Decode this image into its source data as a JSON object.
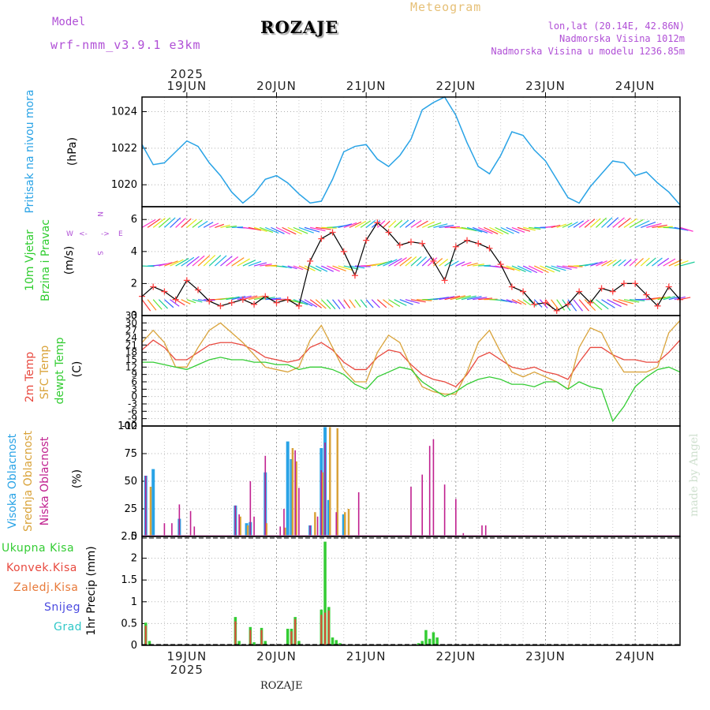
{
  "header": {
    "model_label": "Model",
    "model_name": "wrf-nmm_v3.9.1  e3km",
    "station": "ROZAJE",
    "meteogram": "Meteogram",
    "lonlat": "lon,lat (20.14E, 42.86N)",
    "altitude": "Nadmorska Visina 1012m",
    "model_altitude": "Nadmorska Visina u modelu 1236.85m",
    "footer_station": "ROZAJE",
    "watermark": "made by Angel"
  },
  "colors": {
    "pressure": "#29a3e6",
    "wind_label": "#2ecc2e",
    "temp2m": "#e8493f",
    "sfc": "#d9a33a",
    "dewpt": "#33cc33",
    "high_cloud": "#29a3e6",
    "mid_cloud": "#d9a33a",
    "low_cloud": "#c0208f",
    "precip_total": "#33cc33",
    "precip_conv": "#e8493f",
    "precip_frozen": "#e87a3a",
    "precip_snow": "#4a4ae0",
    "precip_hail": "#30c8c8",
    "model_purple": "#b04fd6"
  },
  "time_axis": {
    "year": "2025",
    "days": [
      "19JUN",
      "20JUN",
      "21JUN",
      "22JUN",
      "23JUN",
      "24JUN"
    ],
    "x_range_hours": [
      -12,
      132
    ]
  },
  "panels": {
    "pressure": {
      "label": "Pritisak na nivou mora",
      "unit": "(hPa)"
    },
    "wind": {
      "label1": "10m Vjetar",
      "label2": "Brzina i Pravac",
      "unit": "(m/s)",
      "compass": {
        "n": "N",
        "s": "S",
        "w": "W",
        "e": "E",
        "arrow_left": "<-",
        "arrow_right": "->"
      }
    },
    "temp": {
      "label1": "2m Temp",
      "label2": "SFC Temp",
      "label3": "dewpt Temp",
      "unit": "(C)"
    },
    "cloud": {
      "label1": "Visoka Oblacnost",
      "label2": "Srednja Oblacnost",
      "label3": "Niska Oblacnost",
      "unit": "(%)"
    },
    "precip": {
      "legend": [
        "Ukupna Kisa",
        "Konvek.Kisa",
        "Zaledj.Kisa",
        "Snijeg",
        "Grad"
      ],
      "unit": "1hr Precip (mm)"
    }
  },
  "chart_data": [
    {
      "type": "line",
      "title": "Pritisak na nivou mora",
      "ylabel": "(hPa)",
      "ylim": [
        1018.8,
        1024.8
      ],
      "yticks": [
        1020,
        1022,
        1024
      ],
      "x_hours": [
        -12,
        -9,
        -6,
        -3,
        0,
        3,
        6,
        9,
        12,
        15,
        18,
        21,
        24,
        27,
        30,
        33,
        36,
        39,
        42,
        45,
        48,
        51,
        54,
        57,
        60,
        63,
        66,
        69,
        72,
        75,
        78,
        81,
        84,
        87,
        90,
        93,
        96,
        99,
        102,
        105,
        108,
        111,
        114,
        117,
        120,
        123,
        126,
        129,
        132
      ],
      "series": [
        {
          "name": "mslp",
          "values": [
            1022.2,
            1021.1,
            1021.2,
            1021.8,
            1022.4,
            1022.1,
            1021.2,
            1020.5,
            1019.6,
            1019.0,
            1019.5,
            1020.3,
            1020.5,
            1020.1,
            1019.5,
            1019.0,
            1019.1,
            1020.3,
            1021.8,
            1022.1,
            1022.2,
            1021.4,
            1021.0,
            1021.6,
            1022.5,
            1024.1,
            1024.5,
            1024.8,
            1023.8,
            1022.3,
            1021.0,
            1020.6,
            1021.6,
            1022.9,
            1022.7,
            1021.9,
            1021.3,
            1020.3,
            1019.3,
            1019.0,
            1019.9,
            1020.6,
            1021.3,
            1021.2,
            1020.5,
            1020.7,
            1020.1,
            1019.6,
            1018.9
          ]
        }
      ]
    },
    {
      "type": "line",
      "title": "10m Vjetar Brzina i Pravac",
      "ylabel": "(m/s)",
      "ylim": [
        0,
        6.8
      ],
      "yticks": [
        0,
        2,
        4,
        6
      ],
      "x_hours": [
        -12,
        -9,
        -6,
        -3,
        0,
        3,
        6,
        9,
        12,
        15,
        18,
        21,
        24,
        27,
        30,
        33,
        36,
        39,
        42,
        45,
        48,
        51,
        54,
        57,
        60,
        63,
        66,
        69,
        72,
        75,
        78,
        81,
        84,
        87,
        90,
        93,
        96,
        99,
        102,
        105,
        108,
        111,
        114,
        117,
        120,
        123,
        126,
        129,
        132
      ],
      "series": [
        {
          "name": "wind_speed",
          "values": [
            1.2,
            1.8,
            1.5,
            1.0,
            2.2,
            1.6,
            0.9,
            0.6,
            0.8,
            1.0,
            0.7,
            1.2,
            0.8,
            1.0,
            0.6,
            3.4,
            4.8,
            5.2,
            4.0,
            2.5,
            4.7,
            5.8,
            5.2,
            4.4,
            4.6,
            4.5,
            3.4,
            2.2,
            4.3,
            4.7,
            4.5,
            4.2,
            3.2,
            1.8,
            1.5,
            0.7,
            0.8,
            0.3,
            0.7,
            1.5,
            0.8,
            1.7,
            1.5,
            2.0,
            2.0,
            1.3,
            0.6,
            1.8,
            1.0
          ]
        }
      ],
      "arrow_rows": [
        1.0,
        3.1,
        5.5
      ]
    },
    {
      "type": "line",
      "title": "Temperature",
      "ylabel": "(C)",
      "ylim": [
        -12,
        33
      ],
      "yticks": [
        -12,
        -9,
        -6,
        -3,
        0,
        3,
        6,
        9,
        12,
        15,
        18,
        21,
        24,
        27,
        30,
        33
      ],
      "x_hours": [
        -12,
        -9,
        -6,
        -3,
        0,
        3,
        6,
        9,
        12,
        15,
        18,
        21,
        24,
        27,
        30,
        33,
        36,
        39,
        42,
        45,
        48,
        51,
        54,
        57,
        60,
        63,
        66,
        69,
        72,
        75,
        78,
        81,
        84,
        87,
        90,
        93,
        96,
        99,
        102,
        105,
        108,
        111,
        114,
        117,
        120,
        123,
        126,
        129,
        132
      ],
      "series": [
        {
          "name": "2m Temp",
          "values": [
            19,
            23,
            20,
            15,
            15,
            18,
            21,
            22,
            22,
            21,
            19,
            16,
            15,
            14,
            15,
            20,
            22,
            19,
            14,
            11,
            11,
            16,
            19,
            18,
            13,
            9,
            7,
            6,
            4,
            9,
            16,
            18,
            15,
            12,
            11,
            12,
            10,
            9,
            7,
            14,
            20,
            20,
            17,
            15,
            15,
            14,
            14,
            18,
            23
          ]
        },
        {
          "name": "SFC Temp",
          "values": [
            22,
            27,
            22,
            12,
            12,
            20,
            27,
            30,
            26,
            22,
            17,
            12,
            11,
            10,
            12,
            23,
            29,
            20,
            11,
            6,
            6,
            18,
            25,
            22,
            12,
            4,
            2,
            1,
            1,
            10,
            22,
            27,
            18,
            10,
            8,
            10,
            8,
            6,
            3,
            20,
            28,
            26,
            17,
            10,
            10,
            10,
            12,
            26,
            31
          ]
        },
        {
          "name": "dewpt Temp",
          "values": [
            14,
            14,
            13,
            12,
            11,
            13,
            15,
            16,
            15,
            15,
            14,
            14,
            13,
            13,
            11,
            12,
            12,
            11,
            9,
            5,
            3,
            8,
            10,
            12,
            11,
            6,
            3,
            0,
            2,
            5,
            7,
            8,
            7,
            5,
            5,
            4,
            6,
            6,
            3,
            6,
            4,
            3,
            -10,
            -4,
            4,
            8,
            11,
            12,
            10
          ]
        }
      ]
    },
    {
      "type": "bar",
      "title": "Oblacnost",
      "ylabel": "(%)",
      "ylim": [
        0,
        100
      ],
      "yticks": [
        0,
        25,
        50,
        75,
        100
      ],
      "series": [
        {
          "name": "Visoka Oblacnost",
          "x_hours": [
            -11,
            -9,
            -2,
            13,
            16,
            17,
            21,
            27,
            28,
            33,
            36,
            37,
            38,
            42
          ],
          "values": [
            55,
            61,
            16,
            28,
            12,
            13,
            58,
            86,
            70,
            10,
            80,
            99,
            33,
            20
          ]
        },
        {
          "name": "Srednja Oblacnost",
          "x_hours": [
            -10,
            14,
            16,
            21,
            26,
            28,
            29,
            34,
            36,
            38,
            40,
            42,
            43
          ],
          "values": [
            45,
            18,
            10,
            12,
            8,
            80,
            68,
            22,
            58,
            99,
            98,
            22,
            25
          ]
        },
        {
          "name": "Niska Oblacnost",
          "x_hours": [
            -11,
            -6,
            -4,
            -2,
            1,
            2,
            13,
            14,
            17,
            18,
            21,
            25,
            26,
            29,
            30,
            33,
            35,
            36,
            37,
            40,
            46,
            60,
            63,
            65,
            66,
            69,
            72,
            74,
            79,
            80
          ],
          "values": [
            55,
            12,
            12,
            29,
            23,
            9,
            28,
            20,
            50,
            18,
            73,
            9,
            25,
            78,
            44,
            10,
            18,
            60,
            85,
            22,
            40,
            45,
            56,
            82,
            88,
            47,
            34,
            3,
            10,
            10
          ]
        }
      ]
    },
    {
      "type": "bar",
      "title": "1hr Precip",
      "ylabel": "1hr Precip (mm)",
      "ylim": [
        0,
        2.5
      ],
      "yticks": [
        0,
        0.5,
        1,
        1.5,
        2,
        2.5
      ],
      "series": [
        {
          "name": "Ukupna Kisa",
          "x_hours": [
            -11,
            -10,
            13,
            14,
            17,
            18,
            20,
            21,
            27,
            28,
            29,
            30,
            36,
            37,
            38,
            39,
            40,
            41,
            62,
            63,
            64,
            65,
            66,
            67
          ],
          "values": [
            0.52,
            0.1,
            0.65,
            0.1,
            0.42,
            0.07,
            0.4,
            0.1,
            0.38,
            0.38,
            0.65,
            0.1,
            0.82,
            2.38,
            0.88,
            0.18,
            0.12,
            0.05,
            0.05,
            0.1,
            0.35,
            0.15,
            0.3,
            0.18
          ]
        },
        {
          "name": "Konvek.Kisa",
          "x_hours": [
            -11,
            13,
            17,
            20,
            28,
            29,
            36,
            37,
            38
          ],
          "values": [
            0.45,
            0.55,
            0.35,
            0.35,
            0.32,
            0.6,
            0.7,
            0.75,
            0.8
          ]
        }
      ]
    }
  ]
}
